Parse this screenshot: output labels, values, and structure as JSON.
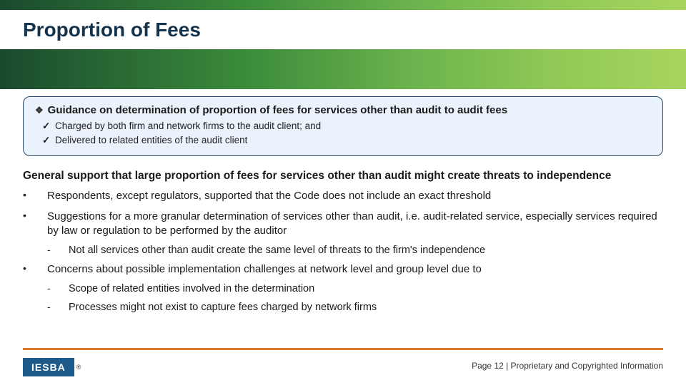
{
  "header": {
    "title": "Proportion of Fees",
    "top_bar_gradient": [
      "#1a4a2e",
      "#3a8a3a",
      "#6bb34d",
      "#8fc855",
      "#a8d55f"
    ],
    "band_gradient": [
      "#1a4a2e",
      "#3a8a3a",
      "#6bb34d",
      "#8fc855",
      "#a8d55f"
    ]
  },
  "callout": {
    "title": "Guidance on determination of proportion of fees for services other than audit to audit fees",
    "background_color": "#eaf2fb",
    "border_color": "#2a4a6a",
    "items": [
      "Charged by both firm and network firms to the audit client; and",
      "Delivered to related entities of the audit client"
    ]
  },
  "support": {
    "heading": "General support that large proportion of fees for services other than audit might create threats to independence",
    "bullets": [
      {
        "text": "Respondents, except regulators, supported that the Code does not include an exact threshold",
        "sub": []
      },
      {
        "text": "Suggestions for a more granular determination of services other than audit, i.e. audit-related service, especially services required by law or regulation to be performed by the auditor",
        "sub": [
          "Not all services other than audit create the same level of threats to the firm's independence"
        ]
      },
      {
        "text": "Concerns about possible implementation challenges at network level and group level due to",
        "sub": [
          "Scope of related entities involved in the determination",
          "Processes might not exist to capture fees charged by network firms"
        ]
      }
    ]
  },
  "footer": {
    "rule_color": "#d97a2b",
    "logo_text": "IESBA",
    "logo_bg": "#1d5a8a",
    "logo_fg": "#ffffff",
    "mark": "®",
    "page_text": "Page 12 | Proprietary and Copyrighted Information"
  }
}
